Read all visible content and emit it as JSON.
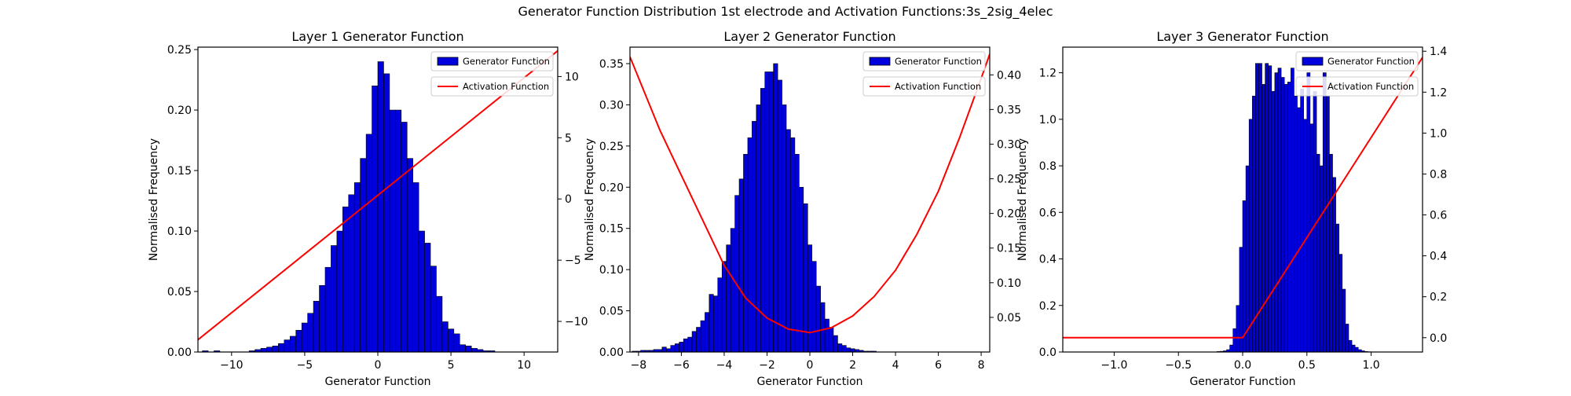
{
  "figure": {
    "suptitle": "Generator Function Distribution 1st electrode and Activation Functions:3s_2sig_4elec"
  },
  "colors": {
    "bar_fill": "#0000dd",
    "bar_edge": "#000000",
    "line": "#ff0000"
  },
  "chart_data": [
    {
      "type": "bar",
      "title": "Layer 1 Generator Function",
      "xlabel": "Generator Function",
      "ylabel": "Normalised Frequency",
      "xlim": [
        -12.3,
        12.3
      ],
      "ylim": [
        0,
        0.252
      ],
      "y2lim": [
        -12.5,
        12.4
      ],
      "xticks": [
        -10,
        -5,
        0,
        5,
        10
      ],
      "yticks": [
        0.0,
        0.05,
        0.1,
        0.15,
        0.2,
        0.25
      ],
      "y2ticks": [
        -10,
        -5,
        0,
        5,
        10
      ],
      "xtick_labels": [
        "−10",
        "−5",
        "0",
        "5",
        "10"
      ],
      "ytick_labels": [
        "0.00",
        "0.05",
        "0.10",
        "0.15",
        "0.20",
        "0.25"
      ],
      "y2tick_labels": [
        "−10",
        "−5",
        "0",
        "5",
        "10"
      ],
      "legend": [
        "Generator Function",
        "Activation Function"
      ],
      "legend_position": "top-right",
      "histogram": {
        "bin_start": -12.0,
        "bin_width": 0.4,
        "values": [
          0.001,
          0,
          0.001,
          0,
          0,
          0,
          0,
          0,
          0.001,
          0.002,
          0.003,
          0.004,
          0.005,
          0.007,
          0.01,
          0.013,
          0.018,
          0.024,
          0.032,
          0.042,
          0.055,
          0.07,
          0.088,
          0.1,
          0.12,
          0.13,
          0.14,
          0.16,
          0.18,
          0.22,
          0.24,
          0.23,
          0.2,
          0.2,
          0.19,
          0.16,
          0.14,
          0.1,
          0.09,
          0.071,
          0.046,
          0.025,
          0.019,
          0.015,
          0.006,
          0.005,
          0.003,
          0.002,
          0.001,
          0.001
        ]
      },
      "activation": {
        "type": "line",
        "points": [
          [
            -12.3,
            -11.5
          ],
          [
            12.3,
            12.1
          ]
        ]
      }
    },
    {
      "type": "bar",
      "title": "Layer 2 Generator Function",
      "xlabel": "Generator Function",
      "ylabel": "Normalised Frequency",
      "xlim": [
        -8.4,
        8.4
      ],
      "ylim": [
        0,
        0.37
      ],
      "y2lim": [
        0.0,
        0.44
      ],
      "xticks": [
        -8,
        -6,
        -4,
        -2,
        0,
        2,
        4,
        6,
        8
      ],
      "yticks": [
        0.0,
        0.05,
        0.1,
        0.15,
        0.2,
        0.25,
        0.3,
        0.35
      ],
      "y2ticks": [
        0.05,
        0.1,
        0.15,
        0.2,
        0.25,
        0.3,
        0.35,
        0.4
      ],
      "xtick_labels": [
        "−8",
        "−6",
        "−4",
        "−2",
        "0",
        "2",
        "4",
        "6",
        "8"
      ],
      "ytick_labels": [
        "0.00",
        "0.05",
        "0.10",
        "0.15",
        "0.20",
        "0.25",
        "0.30",
        "0.35"
      ],
      "y2tick_labels": [
        "0.05",
        "0.10",
        "0.15",
        "0.20",
        "0.25",
        "0.30",
        "0.35",
        "0.40"
      ],
      "legend": [
        "Generator Function",
        "Activation Function"
      ],
      "legend_position": "top-right",
      "histogram": {
        "bin_start": -8.3,
        "bin_width": 0.2,
        "values": [
          0.001,
          0.001,
          0.002,
          0.002,
          0.002,
          0.003,
          0.003,
          0.006,
          0.004,
          0.008,
          0.01,
          0.012,
          0.016,
          0.018,
          0.025,
          0.03,
          0.038,
          0.048,
          0.07,
          0.068,
          0.09,
          0.11,
          0.13,
          0.15,
          0.19,
          0.21,
          0.24,
          0.26,
          0.28,
          0.3,
          0.32,
          0.34,
          0.34,
          0.35,
          0.33,
          0.3,
          0.27,
          0.26,
          0.24,
          0.2,
          0.18,
          0.13,
          0.11,
          0.08,
          0.06,
          0.04,
          0.03,
          0.02,
          0.01,
          0.008,
          0.005,
          0.004,
          0.003,
          0.002,
          0.001,
          0.001,
          0.001
        ]
      },
      "activation": {
        "type": "curve",
        "points": [
          [
            -8.4,
            0.426
          ],
          [
            -7,
            0.32
          ],
          [
            -6,
            0.255
          ],
          [
            -5,
            0.19
          ],
          [
            -4,
            0.125
          ],
          [
            -3,
            0.078
          ],
          [
            -2,
            0.049
          ],
          [
            -1,
            0.033
          ],
          [
            0,
            0.028
          ],
          [
            1,
            0.035
          ],
          [
            2,
            0.052
          ],
          [
            3,
            0.08
          ],
          [
            4,
            0.118
          ],
          [
            5,
            0.17
          ],
          [
            6,
            0.232
          ],
          [
            7,
            0.31
          ],
          [
            8,
            0.395
          ],
          [
            8.4,
            0.43
          ]
        ]
      }
    },
    {
      "type": "bar",
      "title": "Layer 3 Generator Function",
      "xlabel": "Generator Function",
      "ylabel": "Normalised Frequency",
      "xlim": [
        -1.4,
        1.4
      ],
      "ylim": [
        0,
        1.31
      ],
      "y2lim": [
        -0.07,
        1.42
      ],
      "xticks": [
        -1.0,
        -0.5,
        0.0,
        0.5,
        1.0
      ],
      "yticks": [
        0.0,
        0.2,
        0.4,
        0.6,
        0.8,
        1.0,
        1.2
      ],
      "y2ticks": [
        0.0,
        0.2,
        0.4,
        0.6,
        0.8,
        1.0,
        1.2,
        1.4
      ],
      "xtick_labels": [
        "−1.0",
        "−0.5",
        "0.0",
        "0.5",
        "1.0"
      ],
      "ytick_labels": [
        "0.0",
        "0.2",
        "0.4",
        "0.6",
        "0.8",
        "1.0",
        "1.2"
      ],
      "y2tick_labels": [
        "0.0",
        "0.2",
        "0.4",
        "0.6",
        "0.8",
        "1.0",
        "1.2",
        "1.4"
      ],
      "legend": [
        "Generator Function",
        "Activation Function"
      ],
      "legend_position": "top-right",
      "histogram": {
        "bin_start": -0.2,
        "bin_width": 0.025,
        "values": [
          0.002,
          0.003,
          0.005,
          0.01,
          0.03,
          0.1,
          0.2,
          0.45,
          0.65,
          0.8,
          1.0,
          1.1,
          1.24,
          1.24,
          1.15,
          1.24,
          1.23,
          1.12,
          1.2,
          1.22,
          1.18,
          1.15,
          1.16,
          1.22,
          1.1,
          1.05,
          1.13,
          1.0,
          1.2,
          0.98,
          1.12,
          0.85,
          0.8,
          1.2,
          1.1,
          0.85,
          0.75,
          0.55,
          0.42,
          0.27,
          0.12,
          0.05,
          0.03,
          0.02,
          0.01,
          0.005,
          0.002,
          0.001
        ]
      },
      "activation": {
        "type": "line",
        "points": [
          [
            -1.4,
            0.0
          ],
          [
            0.0,
            0.0
          ],
          [
            1.4,
            1.37
          ]
        ]
      }
    }
  ]
}
